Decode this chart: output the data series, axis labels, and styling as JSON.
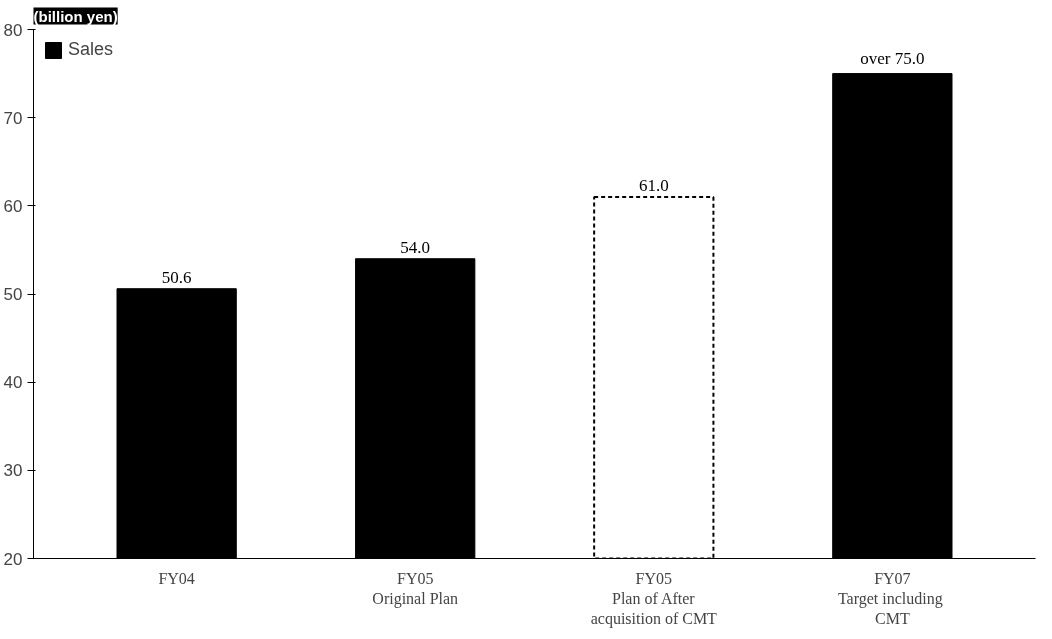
{
  "chart_data": {
    "type": "bar",
    "title": "(billion yen)",
    "categories": [
      "FY04",
      "FY05\nOriginal Plan",
      "FY05\nPlan of After\nacquisition of CMT",
      "FY07\nTarget  including\nCMT"
    ],
    "series": [
      {
        "name": "Sales",
        "color": "#000000",
        "values": [
          50.6,
          54.0,
          null,
          75.0
        ],
        "value_labels": [
          "50.6",
          "54.0",
          null,
          "over 75.0"
        ]
      },
      {
        "color": "#ffffff",
        "line_style": "dashed",
        "values": [
          null,
          null,
          61.0,
          null
        ],
        "value_labels": [
          null,
          null,
          "61.0",
          null
        ]
      }
    ],
    "ylim": [
      20,
      80
    ],
    "yticks": [
      20,
      30,
      40,
      50,
      60,
      70,
      80
    ],
    "grid": false,
    "legend": "top left"
  }
}
